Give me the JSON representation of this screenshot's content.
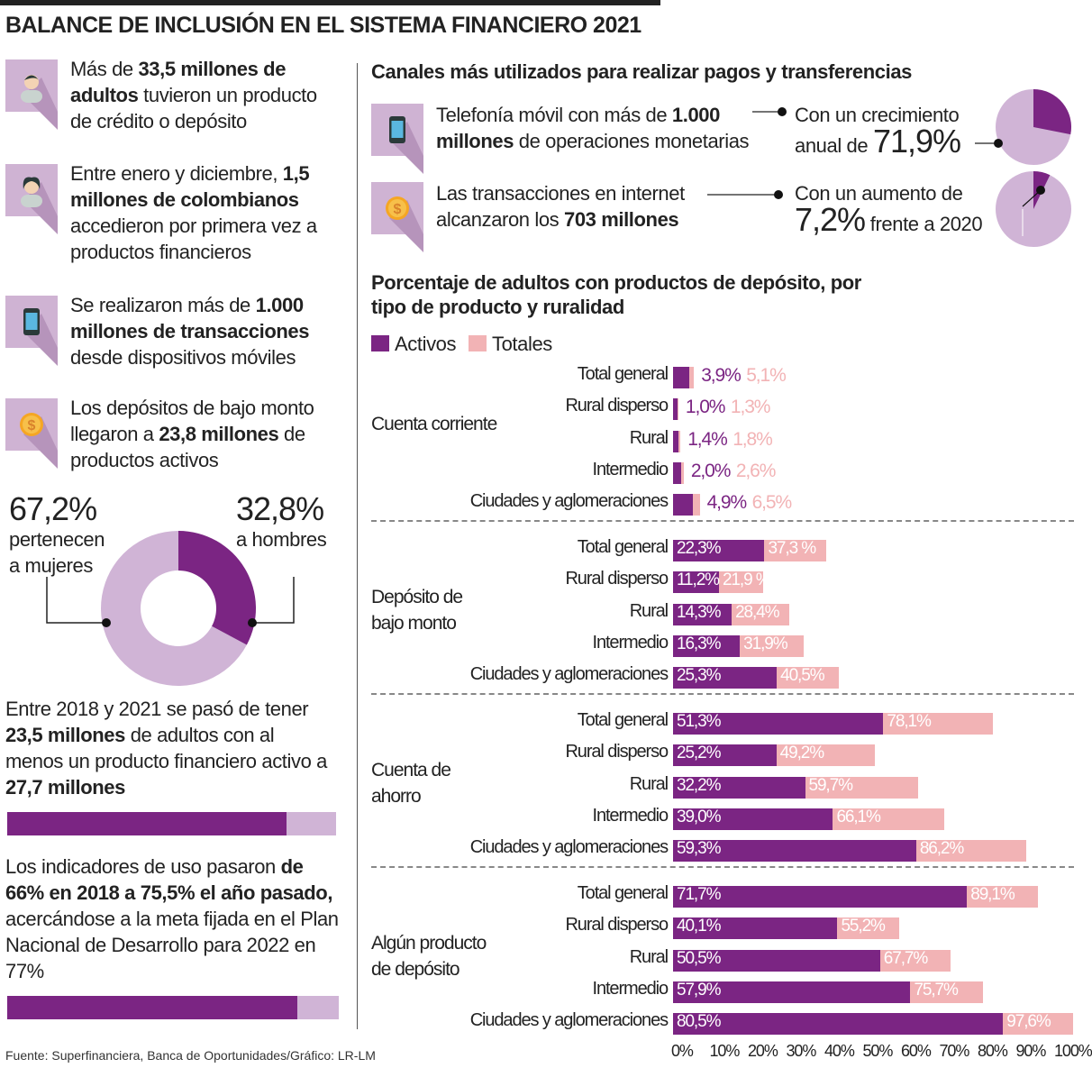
{
  "title": "BALANCE DE INCLUSIÓN EN EL SISTEMA FINANCIERO 2021",
  "colors": {
    "purple": "#7b2583",
    "lilac": "#d0b4d6",
    "pink": "#f2b3b5",
    "icon_bg": "#cfb3d3"
  },
  "left": {
    "stats": [
      {
        "icon": "man-icon",
        "pre": "Más de ",
        "bold": "33,5 millones de adultos",
        "post": " tuvieron un producto de crédito o depósito"
      },
      {
        "icon": "woman-icon",
        "pre": "Entre enero y diciembre, ",
        "bold": "1,5 millones de colombianos",
        "post": " accedieron por primera vez a productos financieros"
      },
      {
        "icon": "mobile-phone-icon",
        "pre": "Se realizaron más de ",
        "bold": "1.000 millones de transacciones",
        "post": " desde dispositivos móviles"
      },
      {
        "icon": "coin-icon",
        "pre": "Los depósitos de bajo monto llegaron a ",
        "bold": "23,8 millones",
        "post": " de productos activos"
      }
    ],
    "gender": {
      "women_pct": "67,2%",
      "women_label": "pertenecen a mujeres",
      "men_pct": "32,8%",
      "men_label": "a hombres",
      "men_value": 32.8
    },
    "adults": {
      "pre": "Entre 2018 y 2021 se pasó de tener ",
      "bold1": "23,5 millones",
      "mid": " de adultos con al menos un producto financiero activo a ",
      "bold2": "27,7 millones",
      "value": 23.5,
      "total": 27.7
    },
    "usage": {
      "bold": "de 66% en 2018 a 75,5% el año pasado,",
      "pre": "Los indicadores de uso pasaron ",
      "post": " acercándose a la meta fijada en el Plan Nacional de Desarrollo para 2022 en 77%",
      "value": 66,
      "total": 75.5
    }
  },
  "channels": {
    "title": "Canales más utilizados para realizar pagos y transferencias",
    "items": [
      {
        "icon": "mobile-phone-icon",
        "pre": "Telefonía móvil con más de ",
        "bold": "1.000 millones",
        "post": " de operaciones monetarias",
        "note_pre": "Con un crecimiento anual de ",
        "note_big": "71,9%",
        "note_post": "",
        "pie_fill": 0.281
      },
      {
        "icon": "coin-icon",
        "pre": "Las transacciones en internet alcanzaron los ",
        "bold": "703 millones",
        "post": "",
        "note_pre": "Con un aumento de ",
        "note_big": "7,2%",
        "note_post": " frente a 2020",
        "pie_fill": 0.072
      }
    ]
  },
  "chart_data": {
    "type": "bar",
    "title": "Porcentaje de adultos con productos de depósito, por tipo de producto y ruralidad",
    "legend": [
      "Activos",
      "Totales"
    ],
    "legend_position": "top-left",
    "xlim": [
      0,
      100
    ],
    "xticks": [
      "0%",
      "10%",
      "20%",
      "30%",
      "40%",
      "50%",
      "60%",
      "70%",
      "80%",
      "90%",
      "100%"
    ],
    "categories": [
      "Total general",
      "Rural disperso",
      "Rural",
      "Intermedio",
      "Ciudades y aglomeraciones"
    ],
    "groups": [
      {
        "name": "Cuenta corriente",
        "activos": [
          3.9,
          1.0,
          1.4,
          2.0,
          4.9
        ],
        "totales": [
          5.1,
          1.3,
          1.8,
          2.6,
          6.5
        ],
        "activos_labels": [
          "3,9%",
          "1,0%",
          "1,4%",
          "2,0%",
          "4,9%"
        ],
        "totales_labels": [
          "5,1%",
          "1,3%",
          "1,8%",
          "2,6%",
          "6,5%"
        ]
      },
      {
        "name": "Depósito de bajo monto",
        "activos": [
          22.3,
          11.2,
          14.3,
          16.3,
          25.3
        ],
        "totales": [
          37.3,
          21.9,
          28.4,
          31.9,
          40.5
        ],
        "activos_labels": [
          "22,3%",
          "11,2%",
          "14,3%",
          "16,3%",
          "25,3%"
        ],
        "totales_labels": [
          "37,3 %",
          "21,9 %",
          "28,4%",
          "31,9%",
          "40,5%"
        ]
      },
      {
        "name": "Cuenta de ahorro",
        "activos": [
          51.3,
          25.2,
          32.2,
          39.0,
          59.3
        ],
        "totales": [
          78.1,
          49.2,
          59.7,
          66.1,
          86.2
        ],
        "activos_labels": [
          "51,3%",
          "25,2%",
          "32,2%",
          "39,0%",
          "59,3%"
        ],
        "totales_labels": [
          "78,1%",
          "49,2%",
          "59,7%",
          "66,1%",
          "86,2%"
        ]
      },
      {
        "name": "Algún producto de depósito",
        "activos": [
          71.7,
          40.1,
          50.5,
          57.9,
          80.5
        ],
        "totales": [
          89.1,
          55.2,
          67.7,
          75.7,
          97.6
        ],
        "activos_labels": [
          "71,7%",
          "40,1%",
          "50,5%",
          "57,9%",
          "80,5%"
        ],
        "totales_labels": [
          "89,1%",
          "55,2%",
          "67,7%",
          "75,7%",
          "97,6%"
        ]
      }
    ]
  },
  "source": "Fuente: Superfinanciera, Banca de Oportunidades/Gráfico: LR-LM"
}
